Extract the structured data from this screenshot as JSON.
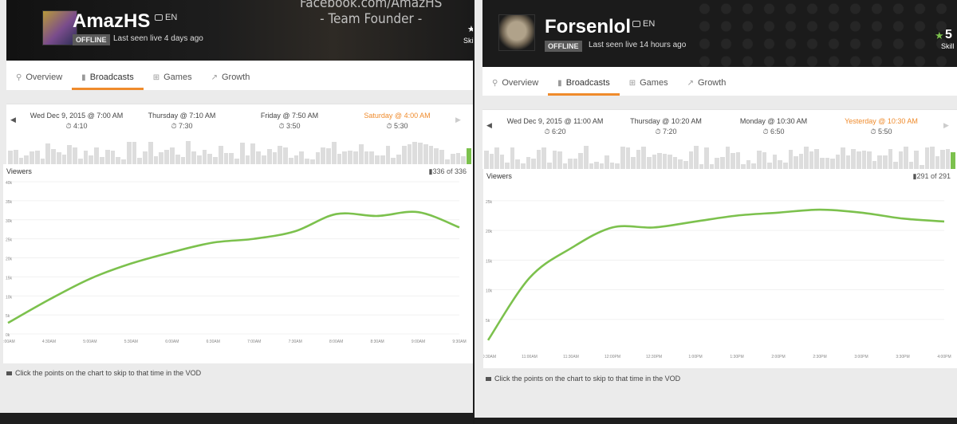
{
  "left": {
    "channel": "AmazHS",
    "lang": "EN",
    "status": "OFFLINE",
    "last_seen": "Last seen live 4 days ago",
    "promo_line1": "Facebook.com/AmazHS",
    "promo_line2": "- Team Founder -",
    "skill_label": "Skil",
    "tabs": [
      "Overview",
      "Broadcasts",
      "Games",
      "Growth"
    ],
    "active_tab": 1,
    "broadcasts": [
      {
        "when": "Wed Dec 9, 2015 @ 7:00 AM",
        "duration": "4:10"
      },
      {
        "when": "Thursday @ 7:10 AM",
        "duration": "7:30"
      },
      {
        "when": "Friday @ 7:50 AM",
        "duration": "3:50"
      },
      {
        "when": "Saturday @ 4:00 AM",
        "duration": "5:30",
        "selected": true
      }
    ],
    "viewers_label": "Viewers",
    "count_label": "336 of 336",
    "hint": "Click the points on the chart to skip to that time in the VOD"
  },
  "right": {
    "channel": "Forsenlol",
    "lang": "EN",
    "status": "OFFLINE",
    "last_seen": "Last seen live 14 hours ago",
    "skill_value": "5",
    "skill_label": "Skill",
    "tabs": [
      "Overview",
      "Broadcasts",
      "Games",
      "Growth"
    ],
    "active_tab": 1,
    "broadcasts": [
      {
        "when": "Wed Dec 9, 2015 @ 11:00 AM",
        "duration": "6:20"
      },
      {
        "when": "Thursday @ 10:20 AM",
        "duration": "7:20"
      },
      {
        "when": "Monday @ 10:30 AM",
        "duration": "6:50"
      },
      {
        "when": "Yesterday @ 10:30 AM",
        "duration": "5:50",
        "selected": true
      }
    ],
    "viewers_label": "Viewers",
    "count_label": "291 of 291",
    "hint": "Click the points on the chart to skip to that time in the VOD"
  },
  "colors": {
    "accent": "#ef8b2c",
    "line": "#7cc14d",
    "header": "#1b1b1b"
  },
  "chart_data": [
    {
      "type": "line",
      "x": [
        "4:00AM",
        "4:30AM",
        "5:00AM",
        "5:30AM",
        "6:00AM",
        "6:30AM",
        "7:00AM",
        "7:30AM",
        "8:00AM",
        "8:30AM",
        "9:00AM",
        "9:30AM"
      ],
      "ytick_labels": [
        "0k",
        "5k",
        "10k",
        "15k",
        "20k",
        "25k",
        "30k",
        "35k",
        "40k"
      ],
      "ylim": [
        0,
        40000
      ],
      "series": [
        {
          "values": [
            2900,
            9000,
            14500,
            18500,
            21500,
            24000,
            25000,
            27000,
            31500,
            31000,
            32000,
            28000
          ]
        }
      ],
      "ylabel": "Viewers"
    },
    {
      "type": "line",
      "x": [
        "10:30AM",
        "11:00AM",
        "11:30AM",
        "12:00PM",
        "12:30PM",
        "1:00PM",
        "1:30PM",
        "2:00PM",
        "2:30PM",
        "3:00PM",
        "3:30PM",
        "4:00PM"
      ],
      "ytick_labels": [
        "5k",
        "10k",
        "15k",
        "20k",
        "25k"
      ],
      "ylim": [
        0,
        27000
      ],
      "series": [
        {
          "values": [
            1500,
            12000,
            17000,
            20500,
            20500,
            21500,
            22500,
            23000,
            23500,
            23000,
            22000,
            21500
          ]
        }
      ],
      "ylabel": "Viewers"
    }
  ]
}
